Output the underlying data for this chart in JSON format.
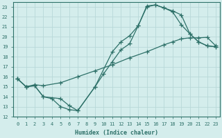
{
  "xlabel": "Humidex (Indice chaleur)",
  "ylabel": "",
  "xlim": [
    -0.5,
    23.5
  ],
  "ylim": [
    12,
    23.5
  ],
  "xticks": [
    0,
    1,
    2,
    3,
    4,
    5,
    6,
    7,
    8,
    9,
    10,
    11,
    12,
    13,
    14,
    15,
    16,
    17,
    18,
    19,
    20,
    21,
    22,
    23
  ],
  "yticks": [
    12,
    13,
    14,
    15,
    16,
    17,
    18,
    19,
    20,
    21,
    22,
    23
  ],
  "bg_color": "#d4edec",
  "grid_color": "#b8d8d8",
  "line_color": "#2d7068",
  "line1_x": [
    0,
    1,
    2,
    3,
    4,
    5,
    6,
    7,
    9,
    10,
    11,
    12,
    13,
    14,
    15,
    16,
    17,
    18,
    19,
    20,
    21,
    22,
    23
  ],
  "line1_y": [
    15.8,
    15.0,
    15.1,
    14.0,
    13.8,
    13.0,
    12.7,
    12.6,
    15.0,
    16.3,
    17.5,
    18.7,
    19.3,
    21.1,
    23.0,
    23.2,
    22.9,
    22.5,
    21.2,
    20.3,
    19.5,
    19.1,
    19.0
  ],
  "line2_x": [
    0,
    1,
    2,
    3,
    5,
    6,
    7,
    9,
    11,
    12,
    13,
    14,
    15,
    16,
    17,
    18,
    19,
    20,
    21,
    22,
    23
  ],
  "line2_y": [
    15.8,
    15.0,
    15.1,
    14.0,
    13.8,
    13.1,
    12.6,
    15.0,
    18.5,
    19.5,
    20.1,
    21.1,
    23.1,
    23.2,
    22.9,
    22.6,
    22.2,
    20.3,
    19.5,
    19.1,
    19.0
  ],
  "line3_x": [
    0,
    1,
    2,
    3,
    5,
    7,
    9,
    11,
    13,
    15,
    17,
    18,
    19,
    20,
    21,
    22,
    23
  ],
  "line3_y": [
    15.8,
    15.0,
    15.2,
    15.1,
    15.4,
    16.0,
    16.6,
    17.2,
    17.9,
    18.5,
    19.2,
    19.5,
    19.8,
    19.9,
    19.9,
    19.95,
    19.1
  ]
}
